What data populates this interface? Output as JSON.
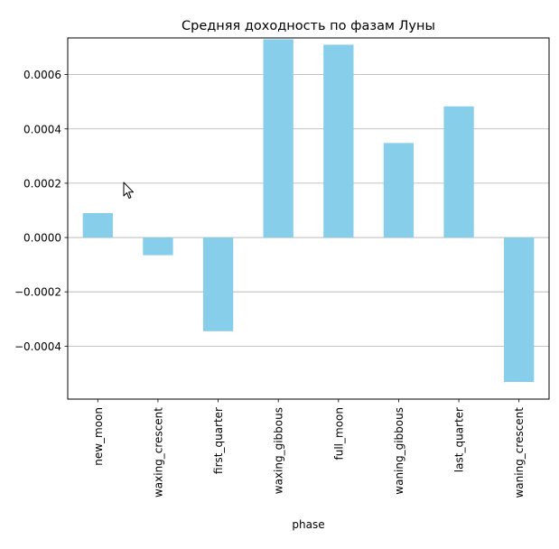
{
  "chart_data": {
    "type": "bar",
    "title": "Средняя доходность по фазам Луны",
    "xlabel": "phase",
    "ylabel": "",
    "categories": [
      "new_moon",
      "waxing_crescent",
      "first_quarter",
      "waxing_gibbous",
      "full_moon",
      "waning_gibbous",
      "last_quarter",
      "waning_crescent"
    ],
    "values": [
      9e-05,
      -6.5e-05,
      -0.000345,
      0.00073,
      0.00071,
      0.000348,
      0.000483,
      -0.000532
    ],
    "ylim": [
      -0.000595,
      0.000735
    ],
    "yticks": [
      -0.0004,
      -0.0002,
      0.0,
      0.0002,
      0.0004,
      0.0006
    ],
    "ytick_labels": [
      "−0.0004",
      "−0.0002",
      "0.0000",
      "0.0002",
      "0.0004",
      "0.0006"
    ],
    "grid": "y",
    "legend": "none",
    "bar_color": "#87ceeb"
  }
}
